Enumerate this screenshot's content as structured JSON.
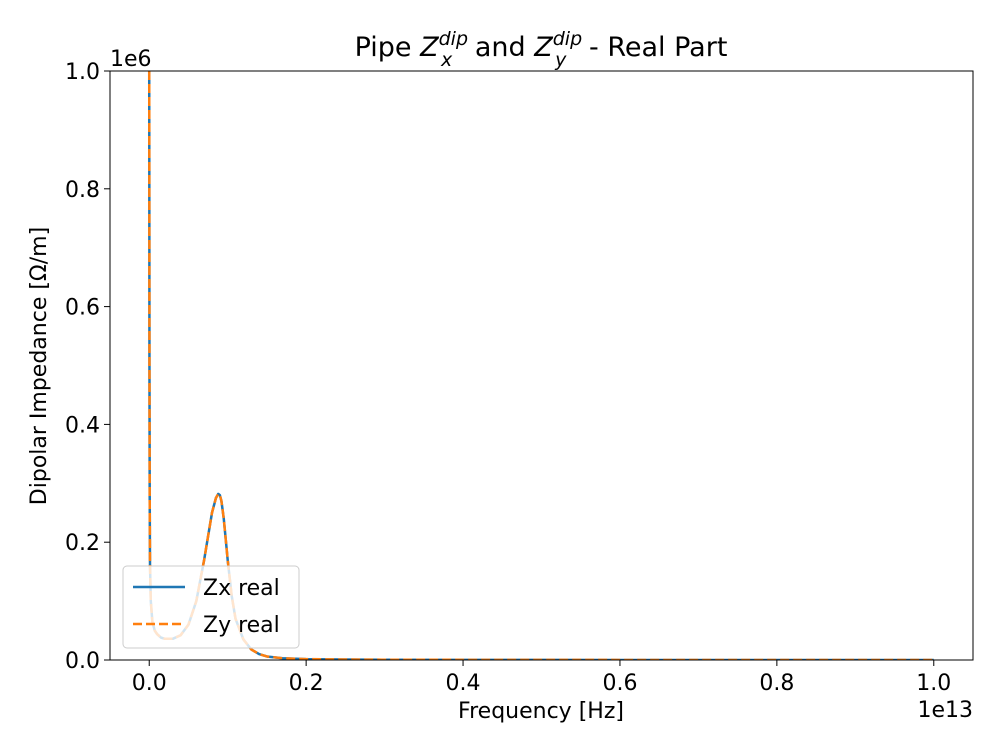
{
  "chart_data": {
    "type": "line",
    "title": {
      "parts": [
        {
          "text": "Pipe ",
          "style": "normal"
        },
        {
          "text": "Z",
          "style": "italic"
        },
        {
          "text": "dip",
          "style": "sup"
        },
        {
          "text": "x",
          "style": "sub"
        },
        {
          "text": " and ",
          "style": "normal"
        },
        {
          "text": "Z",
          "style": "italic"
        },
        {
          "text": "dip",
          "style": "sup"
        },
        {
          "text": "y",
          "style": "sub"
        },
        {
          "text": " - Real Part",
          "style": "normal"
        }
      ]
    },
    "xlabel": "Frequency [Hz]",
    "ylabel": "Dipolar Impedance [Ω/m]",
    "x_offset_label": "1e13",
    "y_offset_label": "1e6",
    "xlim": [
      -0.05,
      1.05
    ],
    "ylim": [
      0.0,
      1.0
    ],
    "x_scale_factor": 10000000000000.0,
    "y_scale_factor": 1000000.0,
    "xticks": [
      0.0,
      0.2,
      0.4,
      0.6,
      0.8,
      1.0
    ],
    "xtick_labels": [
      "0.0",
      "0.2",
      "0.4",
      "0.6",
      "0.8",
      "1.0"
    ],
    "yticks": [
      0.0,
      0.2,
      0.4,
      0.6,
      0.8,
      1.0
    ],
    "ytick_labels": [
      "0.0",
      "0.2",
      "0.4",
      "0.6",
      "0.8",
      "1.0"
    ],
    "grid": false,
    "legend_position": "lower-left",
    "series": [
      {
        "name": "Zx real",
        "color": "#1f77b4",
        "linestyle": "solid",
        "x": [
          0.0,
          0.0001,
          0.0003,
          0.0006,
          0.001,
          0.002,
          0.004,
          0.007,
          0.01,
          0.015,
          0.02,
          0.03,
          0.04,
          0.05,
          0.06,
          0.07,
          0.075,
          0.08,
          0.085,
          0.088,
          0.09,
          0.092,
          0.095,
          0.1,
          0.105,
          0.11,
          0.12,
          0.13,
          0.14,
          0.15,
          0.17,
          0.2,
          0.25,
          0.3,
          0.4,
          0.5,
          0.6,
          0.7,
          0.8,
          0.9,
          1.0
        ],
        "y": [
          1.0,
          0.85,
          0.5,
          0.28,
          0.16,
          0.1,
          0.065,
          0.05,
          0.044,
          0.038,
          0.036,
          0.036,
          0.042,
          0.06,
          0.1,
          0.17,
          0.21,
          0.25,
          0.275,
          0.282,
          0.28,
          0.27,
          0.24,
          0.17,
          0.11,
          0.07,
          0.035,
          0.018,
          0.01,
          0.006,
          0.003,
          0.0015,
          0.0008,
          0.0005,
          0.0003,
          0.0002,
          0.0001,
          0.0001,
          0.0,
          0.0,
          0.0
        ]
      },
      {
        "name": "Zy real",
        "color": "#ff7f0e",
        "linestyle": "dashed",
        "x": [
          0.0,
          0.0001,
          0.0003,
          0.0006,
          0.001,
          0.002,
          0.004,
          0.007,
          0.01,
          0.015,
          0.02,
          0.03,
          0.04,
          0.05,
          0.06,
          0.07,
          0.075,
          0.08,
          0.085,
          0.088,
          0.09,
          0.092,
          0.095,
          0.1,
          0.105,
          0.11,
          0.12,
          0.13,
          0.14,
          0.15,
          0.17,
          0.2,
          0.25,
          0.3,
          0.4,
          0.5,
          0.6,
          0.7,
          0.8,
          0.9,
          1.0
        ],
        "y": [
          1.0,
          0.85,
          0.5,
          0.28,
          0.16,
          0.1,
          0.065,
          0.05,
          0.044,
          0.038,
          0.036,
          0.036,
          0.042,
          0.06,
          0.1,
          0.17,
          0.21,
          0.25,
          0.275,
          0.282,
          0.28,
          0.27,
          0.24,
          0.17,
          0.11,
          0.07,
          0.035,
          0.018,
          0.01,
          0.006,
          0.003,
          0.0015,
          0.0008,
          0.0005,
          0.0003,
          0.0002,
          0.0001,
          0.0001,
          0.0,
          0.0,
          0.0
        ]
      }
    ]
  }
}
